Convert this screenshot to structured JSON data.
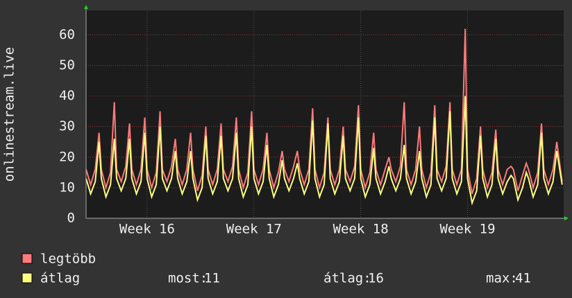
{
  "chart_data": {
    "type": "line",
    "y_label": "onlinestream.live",
    "xlim": [
      0,
      31.3
    ],
    "xticks": [
      {
        "value": 4,
        "label": "Week 16"
      },
      {
        "value": 11,
        "label": "Week 17"
      },
      {
        "value": 18,
        "label": "Week 18"
      },
      {
        "value": 25,
        "label": "Week 19"
      }
    ],
    "ylim": [
      0,
      68
    ],
    "yticks": [
      0,
      10,
      20,
      30,
      40,
      50,
      60
    ],
    "grid": true,
    "x": [
      0,
      0.3,
      0.6,
      0.85,
      1,
      1.3,
      1.6,
      1.85,
      2,
      2.3,
      2.6,
      2.85,
      3,
      3.3,
      3.6,
      3.85,
      4,
      4.3,
      4.6,
      4.85,
      5,
      5.3,
      5.6,
      5.85,
      6,
      6.3,
      6.6,
      6.85,
      7,
      7.3,
      7.6,
      7.85,
      8,
      8.3,
      8.6,
      8.85,
      9,
      9.3,
      9.6,
      9.85,
      10,
      10.3,
      10.6,
      10.85,
      11,
      11.3,
      11.6,
      11.85,
      12,
      12.3,
      12.6,
      12.85,
      13,
      13.3,
      13.6,
      13.85,
      14,
      14.3,
      14.6,
      14.85,
      15,
      15.3,
      15.6,
      15.85,
      16,
      16.3,
      16.6,
      16.85,
      17,
      17.3,
      17.6,
      17.85,
      18,
      18.3,
      18.6,
      18.85,
      19,
      19.3,
      19.6,
      19.85,
      20,
      20.3,
      20.6,
      20.85,
      21,
      21.3,
      21.6,
      21.85,
      22,
      22.3,
      22.6,
      22.85,
      23,
      23.3,
      23.6,
      23.85,
      24,
      24.3,
      24.6,
      24.85,
      25,
      25.3,
      25.6,
      25.85,
      26,
      26.3,
      26.6,
      26.85,
      27,
      27.3,
      27.6,
      27.85,
      28,
      28.3,
      28.6,
      28.85,
      29,
      29.3,
      29.6,
      29.85,
      30,
      30.3,
      30.6,
      30.85,
      31.2
    ],
    "series": [
      {
        "name": "legtöbb",
        "color": "#ff7a7a",
        "values": [
          16,
          11,
          16,
          28,
          16,
          10,
          15,
          38,
          16,
          12,
          17,
          31,
          16,
          11,
          16,
          33,
          16,
          10,
          15,
          35,
          16,
          12,
          17,
          26,
          16,
          11,
          16,
          28,
          16,
          9,
          14,
          30,
          16,
          11,
          16,
          31,
          16,
          12,
          17,
          33,
          16,
          10,
          15,
          35,
          16,
          11,
          16,
          28,
          16,
          10,
          15,
          22,
          16,
          12,
          17,
          22,
          16,
          11,
          16,
          36,
          16,
          10,
          15,
          33,
          16,
          11,
          16,
          30,
          16,
          12,
          17,
          37,
          16,
          10,
          15,
          28,
          16,
          11,
          16,
          20,
          16,
          12,
          17,
          38,
          16,
          11,
          16,
          30,
          16,
          10,
          15,
          37,
          16,
          12,
          17,
          38,
          16,
          11,
          16,
          62,
          16,
          8,
          13,
          30,
          16,
          10,
          15,
          29,
          16,
          11,
          16,
          17,
          16,
          9,
          14,
          18,
          16,
          10,
          15,
          31,
          16,
          11,
          16,
          25,
          12
        ]
      },
      {
        "name": "átlag",
        "color": "#ffff80",
        "values": [
          13,
          8,
          12,
          25,
          13,
          7,
          11,
          26,
          13,
          9,
          13,
          26,
          13,
          8,
          12,
          28,
          13,
          7,
          11,
          30,
          13,
          9,
          13,
          22,
          13,
          8,
          12,
          22,
          13,
          6,
          10,
          27,
          13,
          8,
          12,
          27,
          13,
          9,
          13,
          28,
          13,
          7,
          11,
          30,
          13,
          8,
          12,
          24,
          13,
          7,
          11,
          19,
          13,
          9,
          13,
          18,
          13,
          8,
          12,
          32,
          13,
          7,
          11,
          31,
          13,
          8,
          12,
          27,
          13,
          9,
          13,
          33,
          13,
          7,
          11,
          23,
          13,
          8,
          12,
          17,
          13,
          9,
          13,
          24,
          13,
          8,
          12,
          22,
          13,
          7,
          11,
          33,
          13,
          9,
          13,
          35,
          13,
          8,
          12,
          40,
          13,
          5,
          9,
          27,
          13,
          7,
          11,
          26,
          13,
          8,
          12,
          14,
          13,
          6,
          10,
          15,
          13,
          7,
          11,
          28,
          13,
          8,
          12,
          22,
          11
        ]
      }
    ],
    "stats": [
      {
        "label": "most:",
        "value": 11
      },
      {
        "label": "átlag:",
        "value": 16
      },
      {
        "label": "max:",
        "value": 41
      }
    ]
  }
}
